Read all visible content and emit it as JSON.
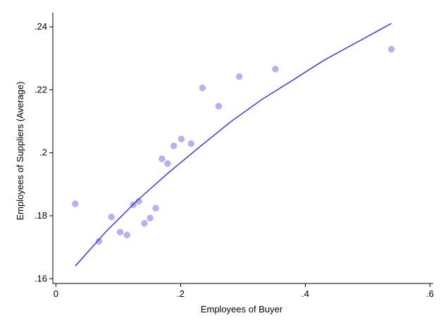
{
  "chart_data": {
    "type": "scatter",
    "xlabel": "Employees of Buyer",
    "ylabel": "Employees of Suppliers (Average)",
    "xlim": [
      -0.005,
      0.605
    ],
    "ylim": [
      0.1585,
      0.2445
    ],
    "x_ticks": [
      {
        "value": 0,
        "label": "0"
      },
      {
        "value": 0.2,
        "label": ".2"
      },
      {
        "value": 0.4,
        "label": ".4"
      },
      {
        "value": 0.6,
        "label": ".6"
      }
    ],
    "y_ticks": [
      {
        "value": 0.16,
        "label": ".16"
      },
      {
        "value": 0.18,
        "label": ".18"
      },
      {
        "value": 0.2,
        "label": ".2"
      },
      {
        "value": 0.22,
        "label": ".22"
      },
      {
        "value": 0.24,
        "label": ".24"
      }
    ],
    "grid": false,
    "legend": "none",
    "colors": {
      "points": "#b3b3f2",
      "fit_line": "#3030e6",
      "axes": "#000000",
      "background": "#ffffff"
    },
    "series": [
      {
        "kind": "points",
        "x": [
          0.031,
          0.069,
          0.089,
          0.103,
          0.114,
          0.124,
          0.133,
          0.142,
          0.151,
          0.16,
          0.17,
          0.179,
          0.189,
          0.201,
          0.217,
          0.235,
          0.261,
          0.294,
          0.352,
          0.538
        ],
        "y": [
          0.1838,
          0.1719,
          0.1796,
          0.1748,
          0.1739,
          0.1835,
          0.1846,
          0.1776,
          0.1793,
          0.1824,
          0.1981,
          0.1966,
          0.2022,
          0.2044,
          0.2029,
          0.2206,
          0.2148,
          0.2242,
          0.2266,
          0.2329
        ]
      },
      {
        "kind": "fit_line",
        "x": [
          0.031,
          0.08,
          0.13,
          0.18,
          0.23,
          0.28,
          0.33,
          0.38,
          0.43,
          0.48,
          0.538
        ],
        "y": [
          0.164,
          0.1749,
          0.1848,
          0.1936,
          0.2018,
          0.2098,
          0.2169,
          0.2231,
          0.2294,
          0.2348,
          0.2411
        ]
      }
    ]
  }
}
